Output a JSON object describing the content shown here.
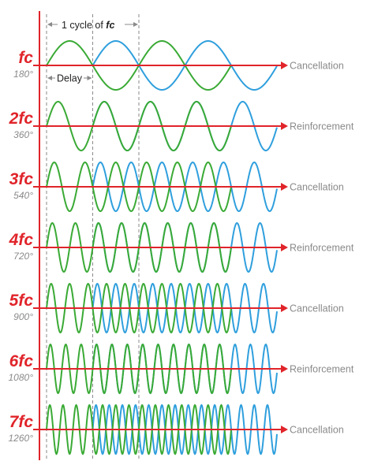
{
  "header": {
    "cycle_label": "1 cycle of ",
    "cycle_label_fc": "fc",
    "delay_label": "Delay"
  },
  "colors": {
    "accent": "#e0242a",
    "green": "#3aaa35",
    "blue": "#2f9fdd",
    "gray": "#8a8a8a",
    "axis_left": "#e0242a"
  },
  "rows": [
    {
      "harmonic": 1,
      "label": "fc",
      "degrees": "180°",
      "result": "Cancellation"
    },
    {
      "harmonic": 2,
      "label": "2fc",
      "degrees": "360°",
      "result": "Reinforcement"
    },
    {
      "harmonic": 3,
      "label": "3fc",
      "degrees": "540°",
      "result": "Cancellation"
    },
    {
      "harmonic": 4,
      "label": "4fc",
      "degrees": "720°",
      "result": "Reinforcement"
    },
    {
      "harmonic": 5,
      "label": "5fc",
      "degrees": "900°",
      "result": "Cancellation"
    },
    {
      "harmonic": 6,
      "label": "6fc",
      "degrees": "1080°",
      "result": "Reinforcement"
    },
    {
      "harmonic": 7,
      "label": "7fc",
      "degrees": "1260°",
      "result": "Cancellation"
    }
  ]
}
